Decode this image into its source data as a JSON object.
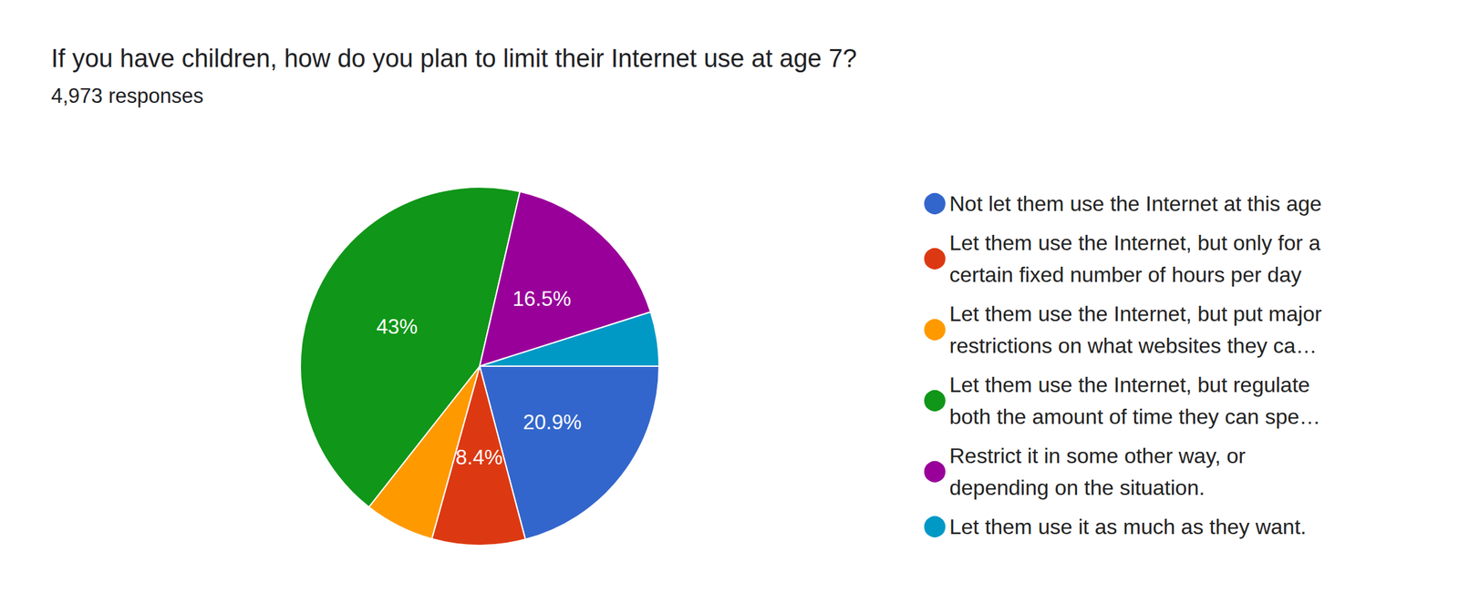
{
  "chart_data": {
    "type": "pie",
    "title": "If you have children, how do you plan to limit their Internet use at age 7?",
    "subtitle": "4,973 responses",
    "categories": [
      "Not let them use the Internet at this age",
      "Let them use the Internet, but only for a\ncertain fixed number of hours per day",
      "Let them use the Internet, but put major\nrestrictions on what websites they ca…",
      "Let them use the Internet, but regulate\nboth the amount of time they can spe…",
      "Restrict it in some other way, or\ndepending on the situation.",
      "Let them use it as much as they want."
    ],
    "values": [
      20.9,
      8.4,
      6.3,
      43,
      16.5,
      4.9
    ],
    "value_labels": [
      "20.9%",
      "8.4%",
      null,
      "43%",
      "16.5%",
      null
    ],
    "colors": [
      "#3366cc",
      "#dc3912",
      "#ff9900",
      "#109618",
      "#990099",
      "#0099c6"
    ],
    "data_labels": true,
    "legend": "right"
  }
}
